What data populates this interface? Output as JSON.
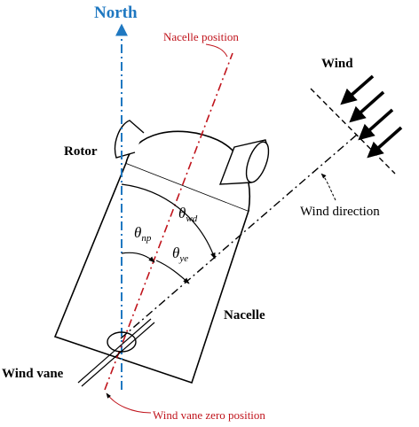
{
  "labels": {
    "north": "North",
    "nacelle_position": "Nacelle position",
    "wind": "Wind",
    "rotor": "Rotor",
    "wind_direction": "Wind direction",
    "nacelle": "Nacelle",
    "wind_vane": "Wind vane",
    "wind_vane_zero_position": "Wind vane zero position"
  },
  "angles": {
    "theta_wd": {
      "symbol": "θ",
      "subscript": "wd"
    },
    "theta_np": {
      "symbol": "θ",
      "subscript": "np"
    },
    "theta_ye": {
      "symbol": "θ",
      "subscript": "ye"
    }
  },
  "colors": {
    "north": "#1f78c1",
    "nacelle_position": "#c0141c",
    "ink": "#000000"
  }
}
